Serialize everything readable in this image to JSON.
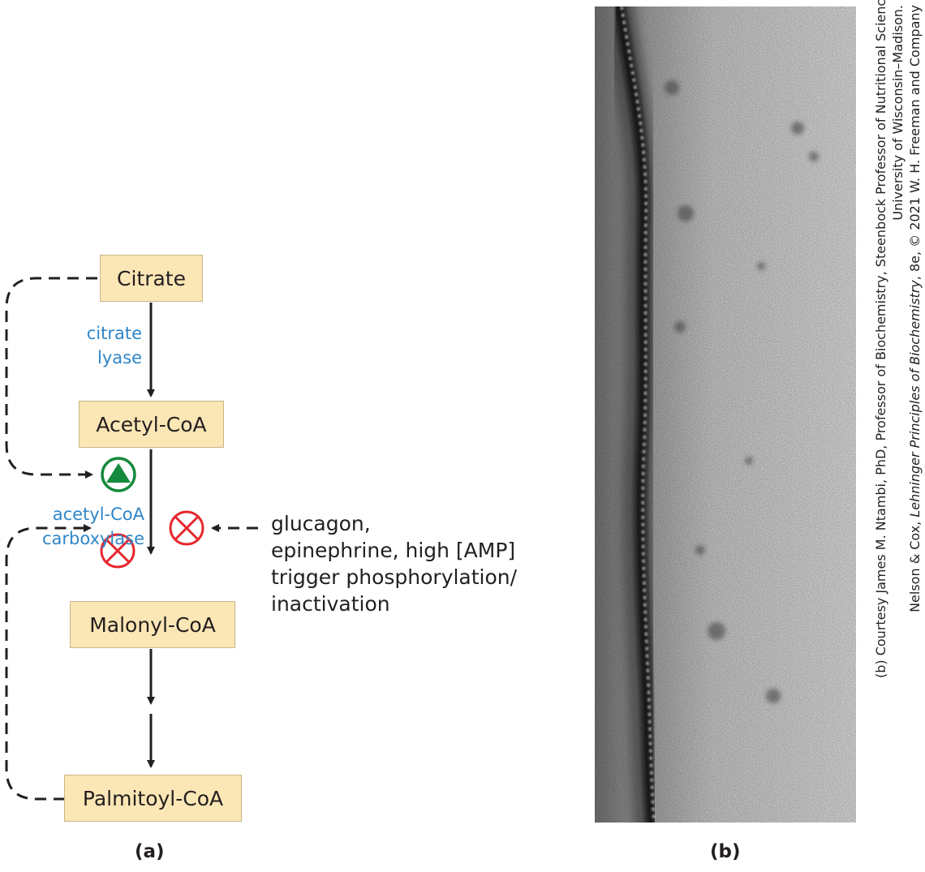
{
  "panel_a": {
    "label": "(a)",
    "nodes": {
      "citrate": "Citrate",
      "acetyl_coa": "Acetyl-CoA",
      "malonyl_coa": "Malonyl-CoA",
      "palmitoyl_coa": "Palmitoyl-CoA"
    },
    "enzymes": {
      "citrate_lyase": [
        "citrate",
        "lyase"
      ],
      "acetyl_coa_carboxylase": [
        "acetyl-CoA",
        "carboxylase"
      ]
    },
    "regulation": {
      "text_lines": [
        "glucagon,",
        "epinephrine, high [AMP]",
        "trigger phosphorylation/",
        "inactivation"
      ]
    },
    "colors": {
      "box_fill": "#fbe6b5",
      "enzyme_text": "#2f86c8",
      "activator": "#148a3c",
      "inhibitor": "#e6262d",
      "arrow": "#231f20"
    }
  },
  "panel_b": {
    "label": "(b)",
    "credit": {
      "line1": "(b) Courtesy James M. Ntambi, PhD, Professor of Biochemistry, Steenbock Professor of Nutritional Sciences,",
      "line2": "University of Wisconsin–Madison.",
      "line3_pre": "Nelson & Cox, ",
      "line3_italic": "Lehninger Principles of Biochemistry",
      "line3_post": ", 8e, © 2021 W. H. Freeman and Company"
    }
  }
}
